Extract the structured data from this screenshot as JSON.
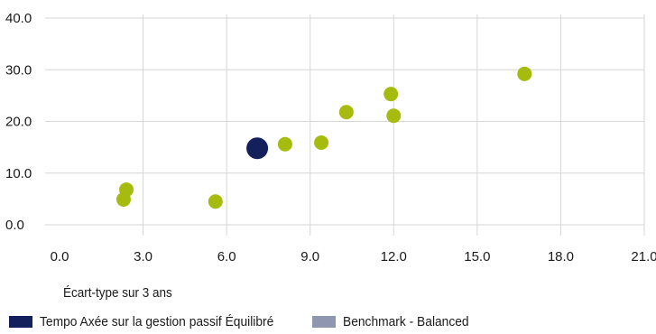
{
  "chart_data": {
    "type": "scatter",
    "xlabel": "Écart-type sur 3 ans",
    "xlim": [
      0,
      21
    ],
    "ylim": [
      0,
      40
    ],
    "x_ticks": [
      "0.0",
      "3.0",
      "6.0",
      "9.0",
      "12.0",
      "15.0",
      "18.0",
      "21.0"
    ],
    "y_ticks": [
      "0.0",
      "10.0",
      "20.0",
      "30.0",
      "40.0"
    ],
    "grid": true,
    "legend_position": "bottom-left",
    "series": [
      {
        "name": "Tempo Axée sur la gestion passif Équilibré",
        "color": "#13205c",
        "points": [
          {
            "x": 7.1,
            "y": 14.8
          }
        ]
      },
      {
        "name": "Benchmark - Balanced",
        "color": "#8e96b0",
        "points": []
      },
      {
        "name": "",
        "color": "#a5bc0f",
        "points": [
          {
            "x": 2.4,
            "y": 6.8
          },
          {
            "x": 2.3,
            "y": 4.9
          },
          {
            "x": 5.6,
            "y": 4.5
          },
          {
            "x": 8.1,
            "y": 15.6
          },
          {
            "x": 9.4,
            "y": 15.9
          },
          {
            "x": 10.3,
            "y": 21.8
          },
          {
            "x": 11.9,
            "y": 25.3
          },
          {
            "x": 12.0,
            "y": 21.1
          },
          {
            "x": 16.7,
            "y": 29.2
          }
        ]
      }
    ]
  }
}
